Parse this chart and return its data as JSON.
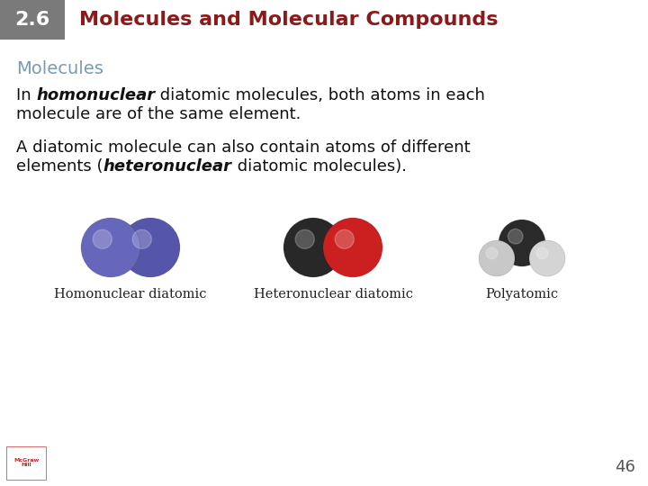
{
  "bg_color": "#ffffff",
  "header_box_color": "#7a7a7a",
  "header_number": "2.6",
  "header_number_color": "#ffffff",
  "header_title": "Molecules and Molecular Compounds",
  "header_title_color": "#8b1a1a",
  "section_title": "Molecules",
  "section_title_color": "#7a9bb5",
  "molecule_labels": [
    "Homonuclear diatomic",
    "Heteronuclear diatomic",
    "Polyatomic"
  ],
  "page_number": "46",
  "page_number_color": "#555555",
  "text_color": "#111111",
  "header_fontsize": 16,
  "body_fontsize": 13,
  "section_fontsize": 14
}
